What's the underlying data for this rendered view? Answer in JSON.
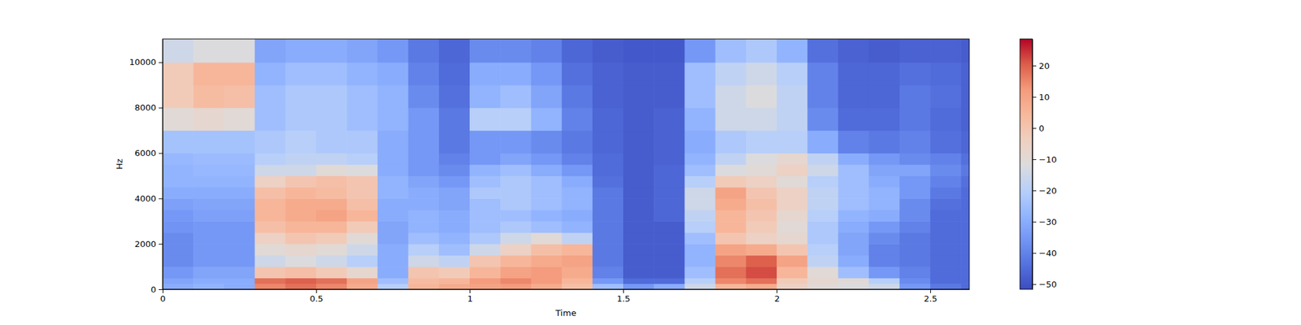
{
  "chart_data": {
    "type": "heatmap",
    "xlabel": "Time",
    "ylabel": "Hz",
    "xlim": [
      0,
      2.627
    ],
    "ylim": [
      0,
      11025
    ],
    "xticks": [
      0,
      0.5,
      1,
      1.5,
      2,
      2.5
    ],
    "yticks": [
      0,
      2000,
      4000,
      6000,
      8000,
      10000
    ],
    "x": [
      0,
      0.1,
      0.2,
      0.3,
      0.4,
      0.5,
      0.6,
      0.7,
      0.8,
      0.9,
      1.0,
      1.1,
      1.2,
      1.3,
      1.4,
      1.5,
      1.6,
      1.7,
      1.8,
      1.9,
      2.0,
      2.1,
      2.2,
      2.3,
      2.4,
      2.5,
      2.6
    ],
    "y": [
      0,
      250,
      500,
      1000,
      1500,
      2000,
      2500,
      3000,
      3500,
      4000,
      4500,
      5000,
      5500,
      6000,
      7000,
      8000,
      9000,
      10000
    ],
    "values": [
      [
        -30,
        -28,
        -30,
        15,
        18,
        15,
        8,
        -20,
        5,
        8,
        10,
        12,
        8,
        2,
        -25,
        -35,
        -30,
        -15,
        5,
        8,
        -5,
        -10,
        -12,
        -15,
        -35,
        -42,
        -45
      ],
      [
        -32,
        -30,
        -30,
        18,
        20,
        18,
        10,
        -25,
        3,
        5,
        12,
        15,
        12,
        5,
        -35,
        -45,
        -45,
        -20,
        15,
        18,
        -2,
        -8,
        -10,
        -20,
        -38,
        -45,
        -45
      ],
      [
        -35,
        -32,
        -32,
        0,
        2,
        -2,
        -8,
        -30,
        0,
        -2,
        5,
        10,
        12,
        8,
        -40,
        -48,
        -48,
        -25,
        18,
        22,
        5,
        -10,
        -25,
        -35,
        -40,
        -45,
        -45
      ],
      [
        -38,
        -35,
        -35,
        -15,
        -12,
        -15,
        -20,
        -30,
        -15,
        -18,
        0,
        5,
        8,
        10,
        -42,
        -48,
        -48,
        -28,
        15,
        20,
        10,
        -18,
        -30,
        -40,
        -42,
        -45,
        -45
      ],
      [
        -38,
        -35,
        -35,
        -10,
        -8,
        -10,
        -15,
        -30,
        -20,
        -25,
        -15,
        -5,
        2,
        5,
        -42,
        -48,
        -48,
        -28,
        10,
        8,
        0,
        -20,
        -32,
        -40,
        -42,
        -45,
        -45
      ],
      [
        -38,
        -35,
        -35,
        -5,
        0,
        -2,
        -10,
        -32,
        -25,
        -28,
        -22,
        -15,
        -10,
        -18,
        -42,
        -48,
        -48,
        -25,
        0,
        -5,
        -8,
        -22,
        -32,
        -38,
        -42,
        -45,
        -45
      ],
      [
        -36,
        -35,
        -35,
        2,
        5,
        5,
        -2,
        -32,
        -28,
        -30,
        -25,
        -22,
        -25,
        -28,
        -42,
        -48,
        -48,
        -20,
        5,
        -2,
        -10,
        -22,
        -30,
        -35,
        -40,
        -45,
        -45
      ],
      [
        -35,
        -33,
        -33,
        5,
        8,
        10,
        5,
        -30,
        -28,
        -30,
        -25,
        -25,
        -28,
        -30,
        -42,
        -48,
        -46,
        -18,
        5,
        0,
        -8,
        -20,
        -28,
        -30,
        -38,
        -45,
        -45
      ],
      [
        -33,
        -32,
        -32,
        5,
        8,
        8,
        2,
        -30,
        -30,
        -32,
        -25,
        -22,
        -25,
        -28,
        -42,
        -48,
        -46,
        -15,
        8,
        2,
        -5,
        -18,
        -25,
        -28,
        -38,
        -44,
        -45
      ],
      [
        -30,
        -30,
        -30,
        2,
        5,
        3,
        0,
        -28,
        -30,
        -32,
        -22,
        -22,
        -25,
        -28,
        -42,
        -48,
        -46,
        -15,
        10,
        0,
        -5,
        -18,
        -25,
        -28,
        -35,
        -42,
        -45
      ],
      [
        -28,
        -28,
        -28,
        -5,
        0,
        2,
        0,
        -28,
        -32,
        -35,
        -25,
        -22,
        -25,
        -30,
        -44,
        -48,
        -46,
        -20,
        -2,
        -5,
        -10,
        -20,
        -25,
        -30,
        -35,
        -40,
        -44
      ],
      [
        -28,
        -27,
        -27,
        -15,
        -15,
        -10,
        -12,
        -30,
        -35,
        -38,
        -28,
        -25,
        -30,
        -35,
        -45,
        -48,
        -46,
        -25,
        -12,
        -10,
        -5,
        -15,
        -25,
        -32,
        -32,
        -38,
        -42
      ],
      [
        -27,
        -26,
        -26,
        -20,
        -18,
        -18,
        -20,
        -30,
        -35,
        -40,
        -35,
        -32,
        -35,
        -40,
        -45,
        -48,
        -47,
        -28,
        -18,
        -12,
        -8,
        -18,
        -30,
        -35,
        -38,
        -40,
        -44
      ],
      [
        -24,
        -24,
        -24,
        -22,
        -20,
        -22,
        -22,
        -30,
        -35,
        -42,
        -35,
        -35,
        -38,
        -42,
        -46,
        -48,
        -47,
        -30,
        -22,
        -20,
        -20,
        -30,
        -40,
        -42,
        -40,
        -44,
        -46
      ],
      [
        -10,
        -8,
        -10,
        -25,
        -22,
        -22,
        -25,
        -28,
        -35,
        -42,
        -20,
        -20,
        -28,
        -40,
        -46,
        -48,
        -47,
        -28,
        -15,
        -15,
        -18,
        -38,
        -45,
        -45,
        -42,
        -45,
        -47
      ],
      [
        -2,
        3,
        2,
        -25,
        -22,
        -22,
        -25,
        -28,
        -38,
        -44,
        -28,
        -25,
        -32,
        -42,
        -47,
        -48,
        -48,
        -25,
        -15,
        -12,
        -18,
        -40,
        -46,
        -46,
        -42,
        -44,
        -47
      ],
      [
        -2,
        5,
        5,
        -28,
        -25,
        -25,
        -28,
        -30,
        -40,
        -45,
        -30,
        -30,
        -35,
        -44,
        -47,
        -48,
        -48,
        -25,
        -18,
        -15,
        -20,
        -40,
        -46,
        -46,
        -44,
        -45,
        -47
      ],
      [
        -15,
        -12,
        -12,
        -32,
        -30,
        -30,
        -32,
        -35,
        -42,
        -46,
        -38,
        -38,
        -40,
        -46,
        -48,
        -49,
        -49,
        -35,
        -25,
        -22,
        -28,
        -44,
        -47,
        -48,
        -47,
        -47,
        -48
      ]
    ],
    "colorbar": {
      "lim": [
        -51.6,
        28.5
      ],
      "ticks": [
        {
          "value": -50,
          "label": "−50"
        },
        {
          "value": -40,
          "label": "−40"
        },
        {
          "value": -30,
          "label": "−30"
        },
        {
          "value": -20,
          "label": "−20"
        },
        {
          "value": -10,
          "label": "−10"
        },
        0,
        10,
        20
      ]
    }
  }
}
